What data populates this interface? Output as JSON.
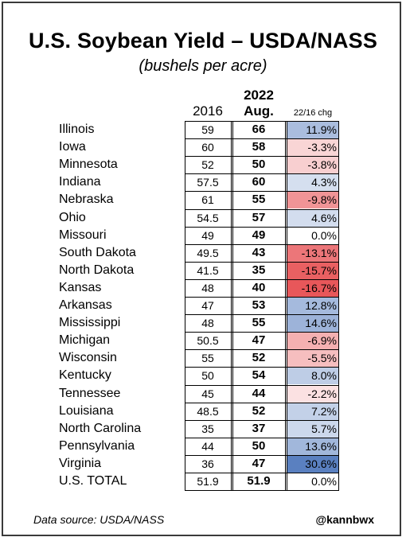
{
  "title": "U.S. Soybean Yield – USDA/NASS",
  "subtitle": "(bushels per acre)",
  "footer": {
    "source": "Data source: USDA/NASS",
    "handle": "@kannbwx"
  },
  "chart_data": {
    "type": "table",
    "columns": {
      "y2016": "2016",
      "y2022_year": "2022",
      "y2022_month": "Aug.",
      "chg": "22/16 chg"
    },
    "color_scale": {
      "negative": "#e8575a",
      "positive": "#5a80c0",
      "neutral": "#ffffff"
    },
    "rows": [
      {
        "state": "Illinois",
        "y2016": "59",
        "y2022": "66",
        "chg": "11.9%",
        "chg_value": 11.9
      },
      {
        "state": "Iowa",
        "y2016": "60",
        "y2022": "58",
        "chg": "-3.3%",
        "chg_value": -3.3
      },
      {
        "state": "Minnesota",
        "y2016": "52",
        "y2022": "50",
        "chg": "-3.8%",
        "chg_value": -3.8
      },
      {
        "state": "Indiana",
        "y2016": "57.5",
        "y2022": "60",
        "chg": "4.3%",
        "chg_value": 4.3
      },
      {
        "state": "Nebraska",
        "y2016": "61",
        "y2022": "55",
        "chg": "-9.8%",
        "chg_value": -9.8
      },
      {
        "state": "Ohio",
        "y2016": "54.5",
        "y2022": "57",
        "chg": "4.6%",
        "chg_value": 4.6
      },
      {
        "state": "Missouri",
        "y2016": "49",
        "y2022": "49",
        "chg": "0.0%",
        "chg_value": 0.0
      },
      {
        "state": "South Dakota",
        "y2016": "49.5",
        "y2022": "43",
        "chg": "-13.1%",
        "chg_value": -13.1
      },
      {
        "state": "North Dakota",
        "y2016": "41.5",
        "y2022": "35",
        "chg": "-15.7%",
        "chg_value": -15.7
      },
      {
        "state": "Kansas",
        "y2016": "48",
        "y2022": "40",
        "chg": "-16.7%",
        "chg_value": -16.7
      },
      {
        "state": "Arkansas",
        "y2016": "47",
        "y2022": "53",
        "chg": "12.8%",
        "chg_value": 12.8
      },
      {
        "state": "Mississippi",
        "y2016": "48",
        "y2022": "55",
        "chg": "14.6%",
        "chg_value": 14.6
      },
      {
        "state": "Michigan",
        "y2016": "50.5",
        "y2022": "47",
        "chg": "-6.9%",
        "chg_value": -6.9
      },
      {
        "state": "Wisconsin",
        "y2016": "55",
        "y2022": "52",
        "chg": "-5.5%",
        "chg_value": -5.5
      },
      {
        "state": "Kentucky",
        "y2016": "50",
        "y2022": "54",
        "chg": "8.0%",
        "chg_value": 8.0
      },
      {
        "state": "Tennessee",
        "y2016": "45",
        "y2022": "44",
        "chg": "-2.2%",
        "chg_value": -2.2
      },
      {
        "state": "Louisiana",
        "y2016": "48.5",
        "y2022": "52",
        "chg": "7.2%",
        "chg_value": 7.2
      },
      {
        "state": "North Carolina",
        "y2016": "35",
        "y2022": "37",
        "chg": "5.7%",
        "chg_value": 5.7
      },
      {
        "state": "Pennsylvania",
        "y2016": "44",
        "y2022": "50",
        "chg": "13.6%",
        "chg_value": 13.6
      },
      {
        "state": "Virginia",
        "y2016": "36",
        "y2022": "47",
        "chg": "30.6%",
        "chg_value": 30.6
      },
      {
        "state": "U.S. TOTAL",
        "y2016": "51.9",
        "y2022": "51.9",
        "chg": "0.0%",
        "chg_value": 0.0
      }
    ]
  }
}
